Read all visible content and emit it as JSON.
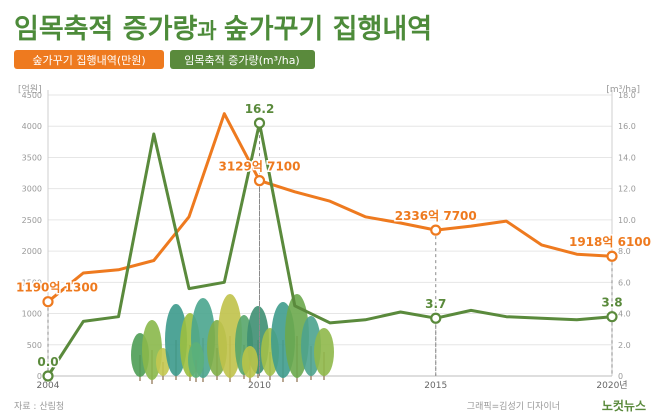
{
  "title": {
    "part1": "임목축적 증가량",
    "part2": "과 ",
    "part3": "숲가꾸기 집행내역"
  },
  "legend": {
    "orange": "숲가꾸기 집행내역(만원)",
    "green": "임목축적 증가량(m³/ha)"
  },
  "source": "자료 : 산림청",
  "credit": "그래픽=김성기 디자이너",
  "logo": "노컷뉴스",
  "colors": {
    "orange": "#ee7a1f",
    "green": "#5a8a3c",
    "title": "#4d8b3a",
    "grid": "#e6e6e6",
    "axis": "#999999",
    "marker_fill": "#ffffff"
  },
  "chart_data": {
    "type": "line",
    "x": [
      2004,
      2005,
      2006,
      2007,
      2008,
      2009,
      2010,
      2011,
      2012,
      2013,
      2014,
      2015,
      2016,
      2017,
      2018,
      2019,
      2020
    ],
    "x_ticks": [
      "2004",
      "2010",
      "2015",
      "2020년"
    ],
    "x_tick_values": [
      2004,
      2010,
      2015,
      2020
    ],
    "xlim": [
      2004,
      2020
    ],
    "y_left": {
      "unit": "[억원]",
      "ticks": [
        "0",
        "500",
        "1000",
        "1500",
        "2000",
        "2500",
        "3000",
        "3500",
        "4000",
        "4500"
      ],
      "ylim": [
        0,
        4500
      ]
    },
    "y_right": {
      "unit": "[m³/ha]",
      "ticks": [
        "0",
        "2.0",
        "4.0",
        "6.0",
        "8.0",
        "10.0",
        "12.0",
        "14.0",
        "16.0",
        "18.0"
      ],
      "ylim": [
        0,
        18
      ]
    },
    "series": [
      {
        "name": "숲가꾸기 집행내역(만원)",
        "axis": "left",
        "color": "#ee7a1f",
        "values": [
          1190,
          1650,
          1700,
          1850,
          2550,
          4200,
          3129,
          2950,
          2800,
          2550,
          2450,
          2336,
          2400,
          2480,
          2100,
          1950,
          1918
        ]
      },
      {
        "name": "임목축적 증가량(m³/ha)",
        "axis": "right",
        "color": "#5a8a3c",
        "values": [
          0.0,
          3.5,
          3.8,
          15.5,
          5.6,
          6.0,
          16.2,
          4.5,
          3.4,
          3.6,
          4.1,
          3.7,
          4.2,
          3.8,
          3.7,
          3.6,
          3.8
        ]
      }
    ],
    "annotations": [
      {
        "series": 0,
        "index": 0,
        "text": "1190억 1300",
        "pos": "above"
      },
      {
        "series": 0,
        "index": 6,
        "text": "3129억 7100",
        "pos": "above"
      },
      {
        "series": 0,
        "index": 11,
        "text": "2336억 7700",
        "pos": "above"
      },
      {
        "series": 0,
        "index": 16,
        "text": "1918억 6100",
        "pos": "above"
      },
      {
        "series": 1,
        "index": 0,
        "text": "0.0",
        "pos": "above"
      },
      {
        "series": 1,
        "index": 6,
        "text": "16.2",
        "pos": "above"
      },
      {
        "series": 1,
        "index": 11,
        "text": "3.7",
        "pos": "above"
      },
      {
        "series": 1,
        "index": 16,
        "text": "3.8",
        "pos": "above"
      }
    ],
    "grid": true,
    "legend_position": "top-left"
  }
}
